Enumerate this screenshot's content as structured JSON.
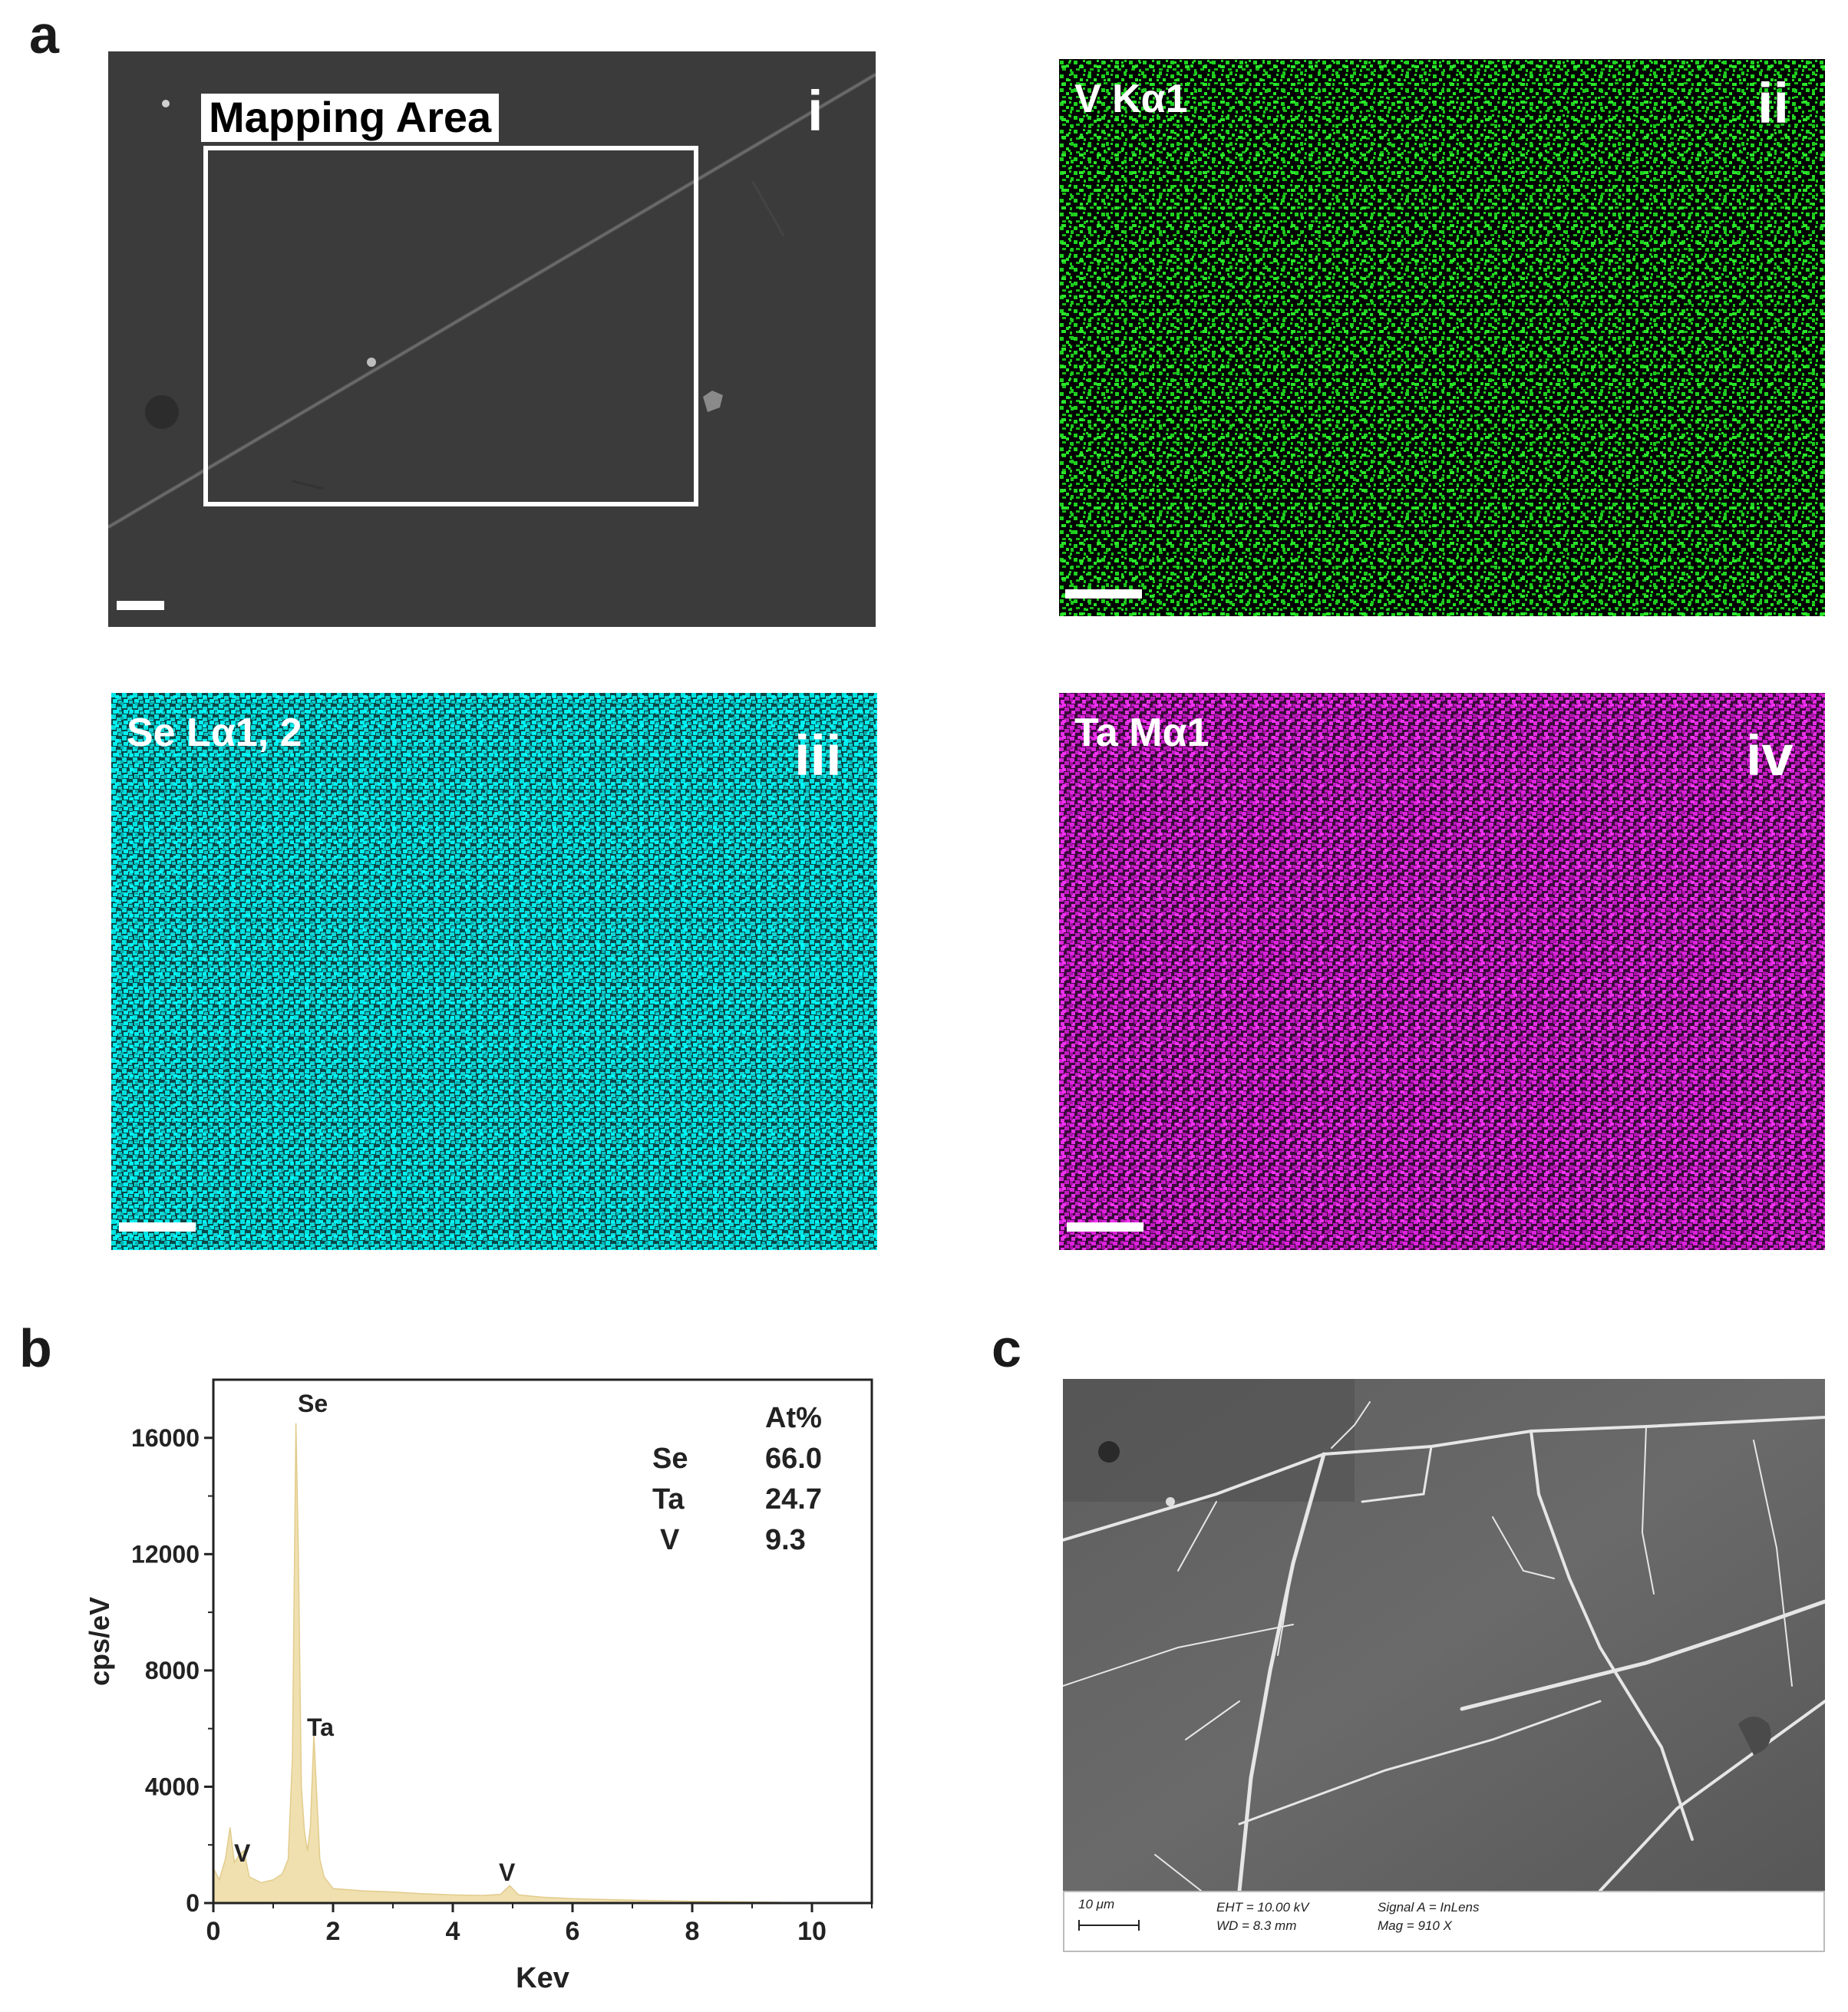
{
  "panels": {
    "a": {
      "letter": "a",
      "i": {
        "numeral": "i",
        "box_label": "Mapping Area"
      },
      "ii": {
        "numeral": "ii",
        "element_label": "V Kα1",
        "color": "#22dd22"
      },
      "iii": {
        "numeral": "iii",
        "element_label": "Se Lα1, 2",
        "color": "#00e5e5"
      },
      "iv": {
        "numeral": "iv",
        "element_label": "Ta Mα1",
        "color": "#dd22dd"
      }
    },
    "b": {
      "letter": "b",
      "table": {
        "header": "At%",
        "rows": [
          {
            "element": "Se",
            "value": "66.0"
          },
          {
            "element": "Ta",
            "value": "24.7"
          },
          {
            "element": "V",
            "value": "9.3"
          }
        ]
      },
      "peak_labels": {
        "se": "Se",
        "ta": "Ta",
        "v_low": "V",
        "v_high": "V"
      }
    },
    "c": {
      "letter": "c",
      "scale_text": "10 μm",
      "eht": "EHT = 10.00 kV",
      "wd": "WD =  8.3 mm",
      "signal": "Signal A = InLens",
      "mag": "Mag =   910 X"
    }
  },
  "chart_data": {
    "type": "area",
    "title": "",
    "xlabel": "Kev",
    "ylabel": "cps/eV",
    "xlim": [
      0,
      11
    ],
    "ylim": [
      0,
      18000
    ],
    "xticks": [
      0,
      2,
      4,
      6,
      8,
      10
    ],
    "yticks": [
      0,
      4000,
      8000,
      12000,
      16000
    ],
    "fill_color": "#f0e0b0",
    "series": [
      {
        "x": [
          0.0,
          0.1,
          0.2,
          0.28,
          0.35,
          0.45,
          0.51,
          0.6,
          0.8,
          1.0,
          1.15,
          1.25,
          1.32,
          1.38,
          1.42,
          1.47,
          1.52,
          1.57,
          1.62,
          1.68,
          1.72,
          1.78,
          1.85,
          2.0,
          2.5,
          3.0,
          3.5,
          4.0,
          4.5,
          4.8,
          4.95,
          5.1,
          5.5,
          6.0,
          7.0,
          8.0,
          9.0,
          9.5,
          10.0
        ],
        "y": [
          1200,
          800,
          1500,
          2600,
          1400,
          1700,
          1800,
          900,
          700,
          800,
          1000,
          1500,
          5000,
          16500,
          12000,
          4000,
          2500,
          1800,
          2600,
          5800,
          4000,
          1500,
          900,
          500,
          420,
          380,
          320,
          280,
          260,
          300,
          600,
          280,
          200,
          150,
          100,
          60,
          40,
          20,
          10
        ]
      }
    ]
  }
}
